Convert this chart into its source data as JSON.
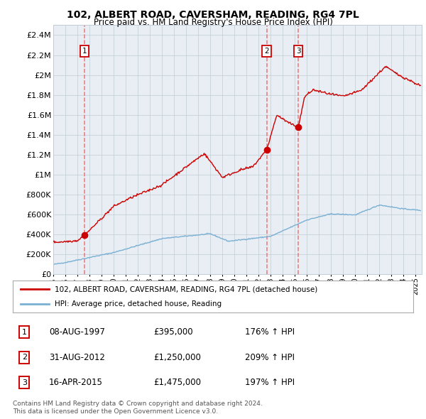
{
  "title": "102, ALBERT ROAD, CAVERSHAM, READING, RG4 7PL",
  "subtitle": "Price paid vs. HM Land Registry's House Price Index (HPI)",
  "ylim": [
    0,
    2500000
  ],
  "yticks": [
    0,
    200000,
    400000,
    600000,
    800000,
    1000000,
    1200000,
    1400000,
    1600000,
    1800000,
    2000000,
    2200000,
    2400000
  ],
  "ytick_labels": [
    "£0",
    "£200K",
    "£400K",
    "£600K",
    "£800K",
    "£1M",
    "£1.2M",
    "£1.4M",
    "£1.6M",
    "£1.8M",
    "£2M",
    "£2.2M",
    "£2.4M"
  ],
  "xlim_start": 1995.0,
  "xlim_end": 2025.5,
  "xlabel_years": [
    1995,
    1996,
    1997,
    1998,
    1999,
    2000,
    2001,
    2002,
    2003,
    2004,
    2005,
    2006,
    2007,
    2008,
    2009,
    2010,
    2011,
    2012,
    2013,
    2014,
    2015,
    2016,
    2017,
    2018,
    2019,
    2020,
    2021,
    2022,
    2023,
    2024,
    2025
  ],
  "sale_dates": [
    1997.6,
    2012.67,
    2015.29
  ],
  "sale_prices": [
    395000,
    1250000,
    1475000
  ],
  "sale_labels": [
    "1",
    "2",
    "3"
  ],
  "legend_line1": "102, ALBERT ROAD, CAVERSHAM, READING, RG4 7PL (detached house)",
  "legend_line2": "HPI: Average price, detached house, Reading",
  "table_rows": [
    [
      "1",
      "08-AUG-1997",
      "£395,000",
      "176% ↑ HPI"
    ],
    [
      "2",
      "31-AUG-2012",
      "£1,250,000",
      "209% ↑ HPI"
    ],
    [
      "3",
      "16-APR-2015",
      "£1,475,000",
      "197% ↑ HPI"
    ]
  ],
  "footnote1": "Contains HM Land Registry data © Crown copyright and database right 2024.",
  "footnote2": "This data is licensed under the Open Government Licence v3.0.",
  "red_color": "#cc0000",
  "blue_color": "#7ab0d4",
  "dashed_color": "#e87878",
  "chart_bg": "#e8eef4",
  "background_color": "#ffffff",
  "grid_color": "#c0ccd6"
}
